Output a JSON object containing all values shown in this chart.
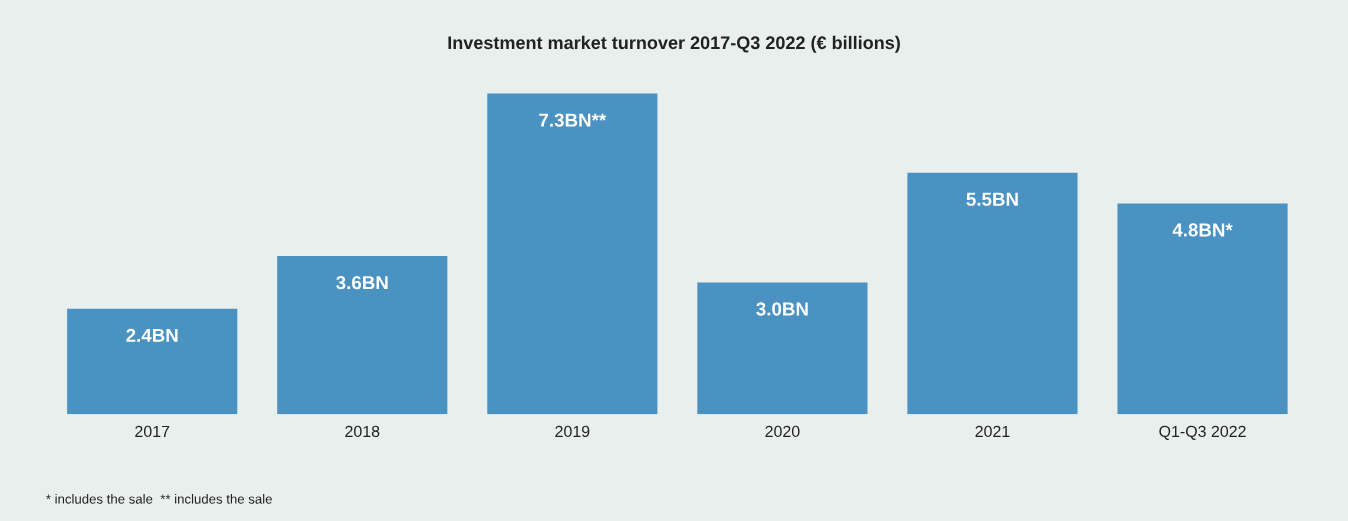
{
  "chart_data": {
    "type": "bar",
    "title": "Investment market turnover 2017-Q3 2022 (€ billions)",
    "categories": [
      "2017",
      "2018",
      "2019",
      "2020",
      "2021",
      "Q1-Q3 2022"
    ],
    "values": [
      2.4,
      3.6,
      7.3,
      3.0,
      5.5,
      4.8
    ],
    "value_labels": [
      "2.4BN",
      "3.6BN",
      "7.3BN**",
      "3.0BN",
      "5.5BN",
      "4.8BN*"
    ],
    "color": "#4a92c2",
    "tick_labels": "x",
    "grid": false,
    "annotations": [
      "* includes the sale  ** includes the sale"
    ]
  }
}
